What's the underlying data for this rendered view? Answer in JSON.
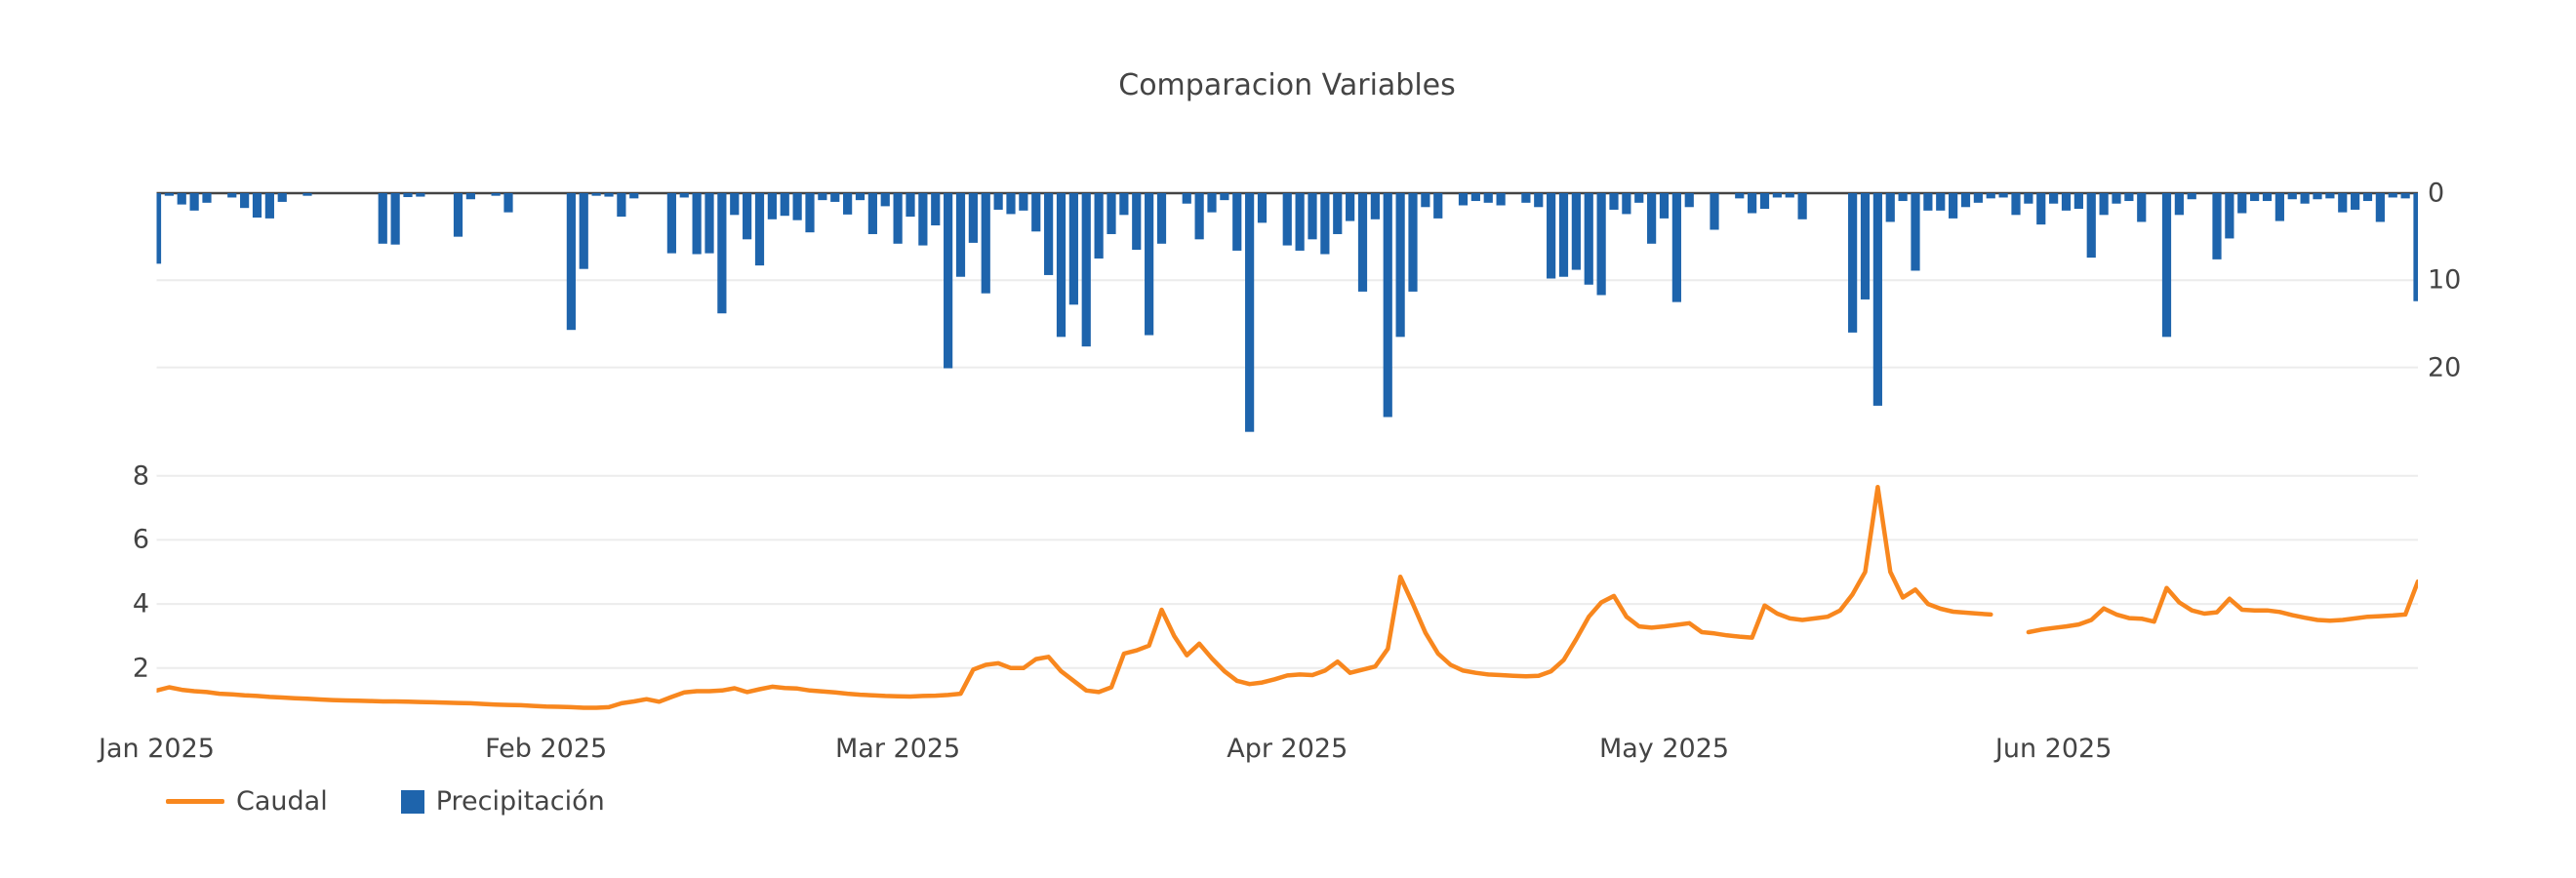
{
  "title": "Comparacion Variables",
  "legend": {
    "caudal_label": "Caudal",
    "precipitacion_label": "Precipitación"
  },
  "colors": {
    "caudal": "#F8871E",
    "precipitacion": "#1E64AC",
    "text": "#444444",
    "grid": "#ececec",
    "zeroline": "#444444",
    "background": "#ffffff"
  },
  "chart_data": [
    {
      "type": "bar",
      "name": "Precipitación",
      "subplot": "top",
      "orientation": "inverted-from-top",
      "ylabel_side": "right",
      "yticks": [
        0,
        10,
        20
      ],
      "ylim": [
        0,
        28
      ],
      "x_start": "2025-01-01",
      "x_end": "2025-06-30",
      "x_unit": "day-index",
      "values": [
        8.1,
        0.3,
        1.3,
        2.0,
        1.1,
        0,
        0.5,
        1.7,
        2.8,
        2.9,
        1.0,
        0,
        0.3,
        0,
        0,
        0,
        0,
        0,
        5.8,
        5.9,
        0.45,
        0.4,
        0,
        0,
        5.0,
        0.7,
        0,
        0.3,
        2.2,
        0,
        0,
        0,
        0,
        15.7,
        8.7,
        0.3,
        0.4,
        2.7,
        0.6,
        0,
        0,
        6.9,
        0.5,
        7.0,
        6.9,
        13.8,
        2.5,
        5.3,
        8.3,
        3.0,
        2.6,
        3.1,
        4.5,
        0.8,
        1.0,
        2.45,
        0.8,
        4.7,
        1.5,
        5.8,
        2.7,
        6.0,
        3.7,
        20.1,
        9.6,
        5.7,
        11.5,
        1.9,
        2.4,
        2.0,
        4.4,
        9.4,
        16.5,
        12.8,
        17.6,
        7.5,
        4.7,
        2.5,
        6.5,
        16.3,
        5.8,
        0,
        1.2,
        5.3,
        2.2,
        0.8,
        6.6,
        27.4,
        3.4,
        0,
        6.0,
        6.6,
        5.3,
        7.0,
        4.7,
        3.2,
        11.3,
        3.0,
        25.7,
        16.5,
        11.3,
        1.6,
        2.9,
        0,
        1.4,
        0.9,
        1.1,
        1.4,
        0,
        1.1,
        1.6,
        9.8,
        9.6,
        8.8,
        10.5,
        11.7,
        1.9,
        2.4,
        1.1,
        5.8,
        2.9,
        12.5,
        1.6,
        0,
        4.2,
        0,
        0.6,
        2.3,
        1.8,
        0.5,
        0.5,
        3.0,
        0,
        0,
        0,
        16.0,
        12.2,
        24.4,
        3.3,
        0.9,
        8.9,
        2.0,
        2.0,
        2.9,
        1.6,
        1.1,
        0.6,
        0.5,
        2.5,
        1.2,
        3.6,
        1.2,
        2.0,
        1.8,
        7.4,
        2.5,
        1.2,
        0.9,
        3.3,
        0,
        16.5,
        2.5,
        0.7,
        0,
        7.6,
        5.2,
        2.3,
        0.9,
        0.9,
        3.2,
        0.7,
        1.2,
        0.7,
        0.6,
        2.2,
        1.9,
        0.9,
        3.3,
        0.5,
        0.6,
        12.4
      ]
    },
    {
      "type": "line",
      "name": "Caudal",
      "subplot": "bottom",
      "ylabel_side": "left",
      "yticks": [
        2,
        4,
        6,
        8
      ],
      "ylim": [
        0,
        8.6
      ],
      "x_start": "2025-01-01",
      "x_end": "2025-06-30",
      "x_unit": "day-index",
      "values": [
        1.3,
        1.4,
        1.32,
        1.28,
        1.25,
        1.2,
        1.18,
        1.15,
        1.13,
        1.1,
        1.08,
        1.06,
        1.04,
        1.02,
        1.0,
        0.99,
        0.98,
        0.97,
        0.96,
        0.96,
        0.95,
        0.94,
        0.93,
        0.92,
        0.91,
        0.9,
        0.88,
        0.86,
        0.85,
        0.84,
        0.82,
        0.8,
        0.79,
        0.78,
        0.76,
        0.76,
        0.78,
        0.9,
        0.96,
        1.03,
        0.95,
        1.1,
        1.24,
        1.28,
        1.28,
        1.3,
        1.37,
        1.25,
        1.34,
        1.42,
        1.38,
        1.36,
        1.3,
        1.27,
        1.24,
        1.2,
        1.17,
        1.15,
        1.13,
        1.12,
        1.11,
        1.13,
        1.14,
        1.16,
        1.2,
        1.95,
        2.1,
        2.15,
        2.0,
        2.0,
        2.28,
        2.35,
        1.9,
        1.6,
        1.3,
        1.25,
        1.4,
        2.45,
        2.55,
        2.7,
        3.82,
        3.0,
        2.4,
        2.76,
        2.3,
        1.9,
        1.6,
        1.5,
        1.55,
        1.65,
        1.77,
        1.8,
        1.78,
        1.92,
        2.2,
        1.85,
        1.95,
        2.05,
        2.6,
        4.85,
        4.0,
        3.1,
        2.45,
        2.1,
        1.92,
        1.85,
        1.8,
        1.78,
        1.76,
        1.74,
        1.76,
        1.9,
        2.25,
        2.9,
        3.6,
        4.05,
        4.25,
        3.6,
        3.3,
        3.26,
        3.3,
        3.35,
        3.4,
        3.12,
        3.08,
        3.02,
        2.98,
        2.95,
        3.95,
        3.7,
        3.55,
        3.5,
        3.55,
        3.6,
        3.8,
        4.3,
        5.0,
        7.65,
        5.0,
        4.2,
        4.45,
        4.0,
        3.85,
        3.76,
        3.73,
        3.7,
        3.67,
        null,
        null,
        3.12,
        3.2,
        3.25,
        3.3,
        3.36,
        3.5,
        3.86,
        3.67,
        3.56,
        3.54,
        3.45,
        4.5,
        4.05,
        3.8,
        3.7,
        3.74,
        4.16,
        3.82,
        3.8,
        3.8,
        3.75,
        3.65,
        3.57,
        3.5,
        3.48,
        3.5,
        3.55,
        3.6,
        3.62,
        3.64,
        3.67,
        4.7
      ]
    }
  ],
  "x_axis": {
    "ticks": [
      {
        "label": "Jan 2025",
        "day": 0
      },
      {
        "label": "Feb 2025",
        "day": 31
      },
      {
        "label": "Mar 2025",
        "day": 59
      },
      {
        "label": "Apr 2025",
        "day": 90
      },
      {
        "label": "May 2025",
        "day": 120
      },
      {
        "label": "Jun 2025",
        "day": 151
      }
    ]
  },
  "top_axis_ticks": [
    "0",
    "10",
    "20"
  ],
  "bottom_axis_ticks": [
    "8",
    "6",
    "4",
    "2"
  ]
}
